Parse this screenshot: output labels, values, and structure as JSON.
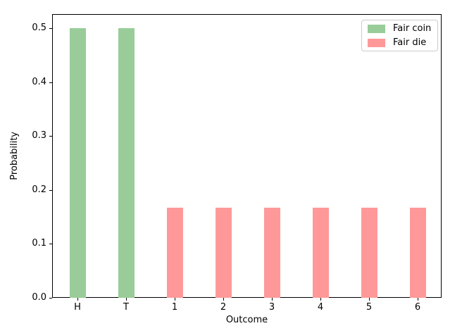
{
  "figure": {
    "background": "#ffffff"
  },
  "axes": {
    "spine_color": "#000000",
    "tick_color": "#000000",
    "text_color": "#000000"
  },
  "chart_data": {
    "type": "bar",
    "title": "",
    "xlabel": "Outcome",
    "ylabel": "Probability",
    "categories": [
      "H",
      "T",
      "1",
      "2",
      "3",
      "4",
      "5",
      "6"
    ],
    "series": [
      {
        "name": "Fair coin",
        "color": "#99cc99",
        "values": [
          0.5,
          0.5,
          null,
          null,
          null,
          null,
          null,
          null
        ]
      },
      {
        "name": "Fair die",
        "color": "#ff9999",
        "values": [
          null,
          null,
          0.167,
          0.167,
          0.167,
          0.167,
          0.167,
          0.167
        ]
      }
    ],
    "ylim": [
      0,
      0.526
    ],
    "yticks": [
      0.0,
      0.1,
      0.2,
      0.3,
      0.4,
      0.5
    ],
    "grid": false,
    "legend": {
      "position": "upper right",
      "entries": [
        {
          "label": "Fair coin",
          "color": "#99cc99"
        },
        {
          "label": "Fair die",
          "color": "#ff9999"
        }
      ]
    }
  }
}
